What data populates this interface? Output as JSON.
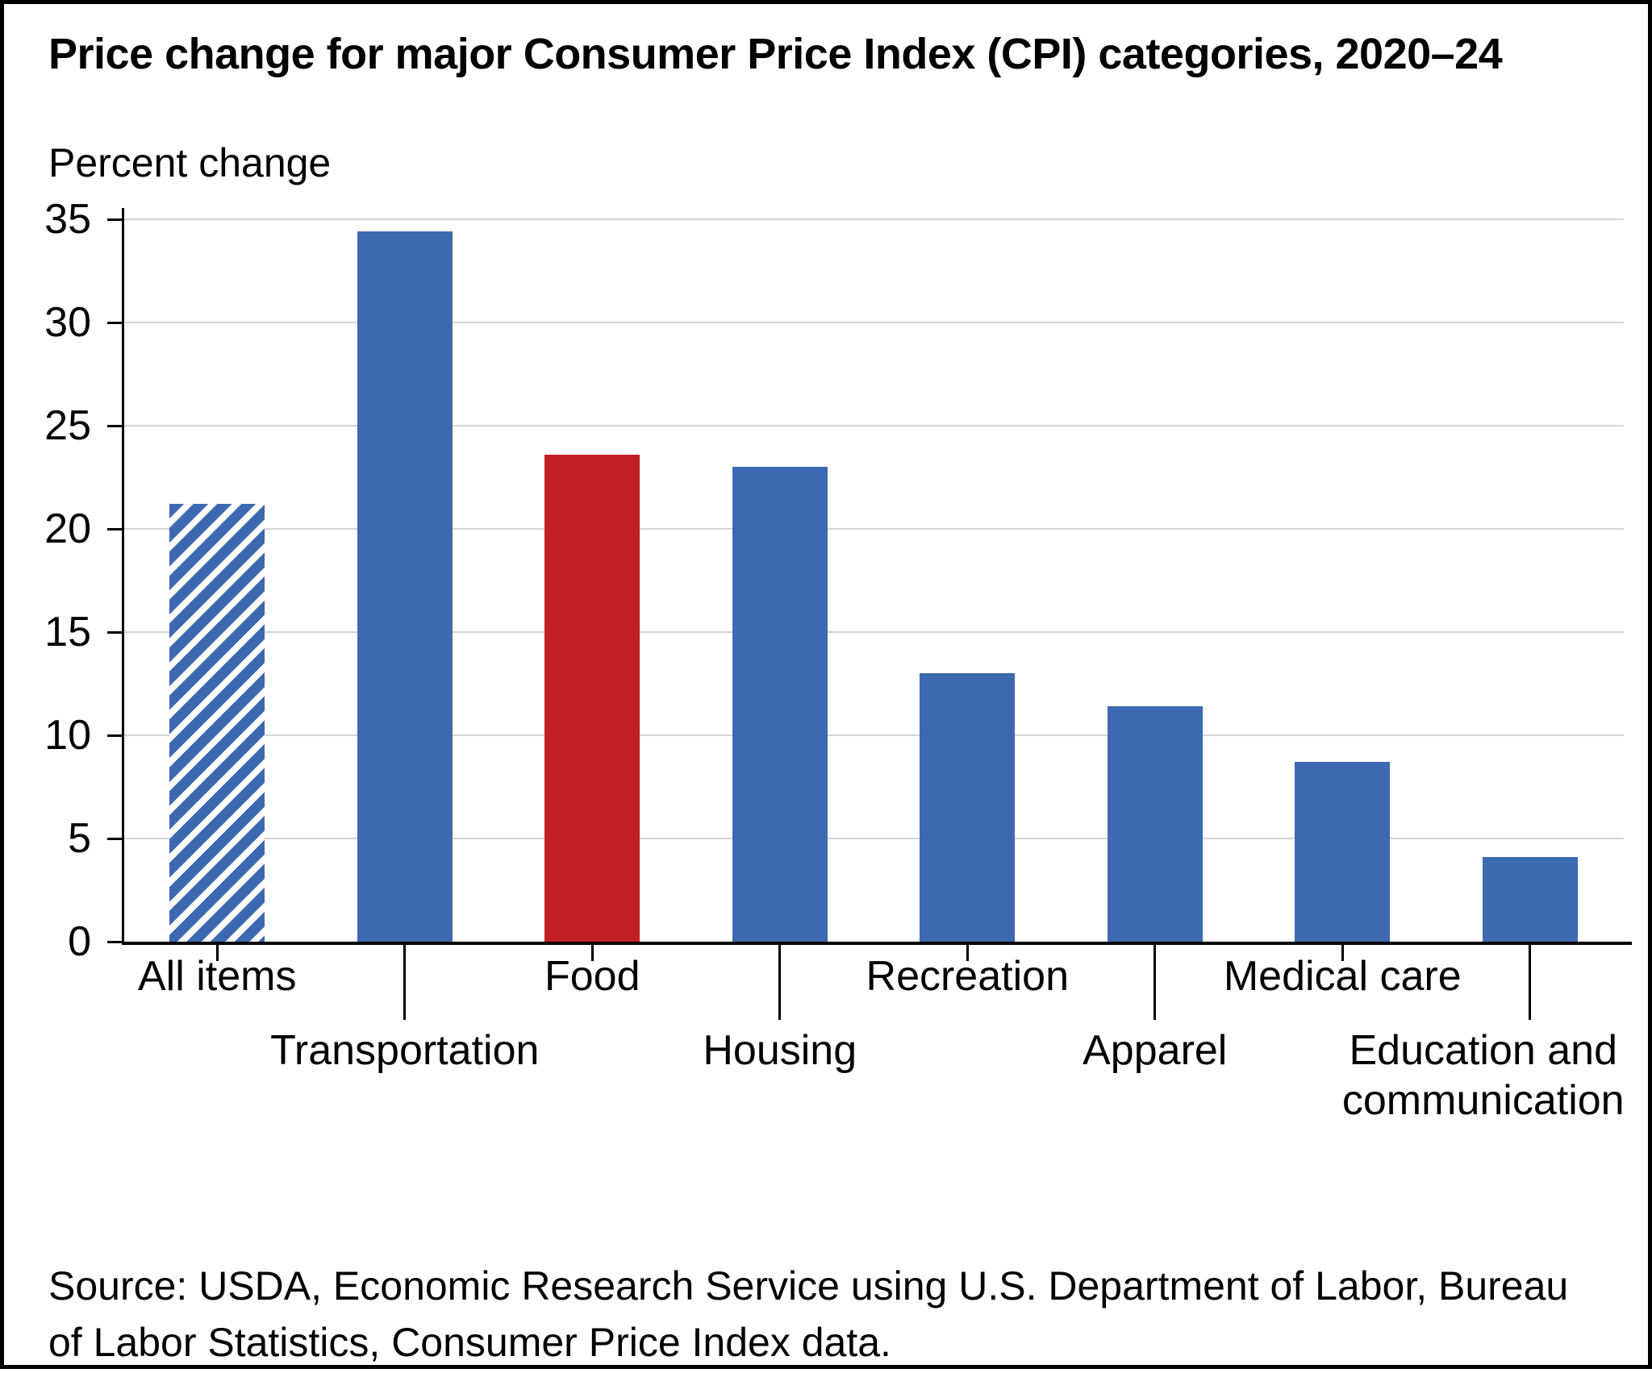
{
  "title": "Price change for major Consumer Price Index (CPI) categories, 2020–24",
  "axis_title": "Percent change",
  "source": [
    "Source: USDA, Economic Research Service using U.S. Department of Labor, Bureau",
    "of Labor Statistics, Consumer Price Index data."
  ],
  "colors": {
    "bar_blue": "#3D69B1",
    "bar_red": "#C21F26",
    "gridline": "#D4D4D4",
    "axis": "#000000"
  },
  "chart_data": {
    "type": "bar",
    "title": "Price change for major Consumer Price Index (CPI) categories, 2020–24",
    "ylabel": "Percent change",
    "xlabel": "",
    "categories": [
      "All items",
      "Transportation",
      "Food",
      "Housing",
      "Recreation",
      "Apparel",
      "Medical care",
      "Education and communication"
    ],
    "values": [
      21.2,
      34.4,
      23.6,
      23.0,
      13.0,
      11.4,
      8.7,
      4.1
    ],
    "bar_styles": [
      "hatched-blue",
      "blue",
      "red",
      "blue",
      "blue",
      "blue",
      "blue",
      "blue"
    ],
    "ylim": [
      0,
      35
    ],
    "yticks": [
      0,
      5,
      10,
      15,
      20,
      25,
      30,
      35
    ],
    "grid": true,
    "legend": false
  }
}
